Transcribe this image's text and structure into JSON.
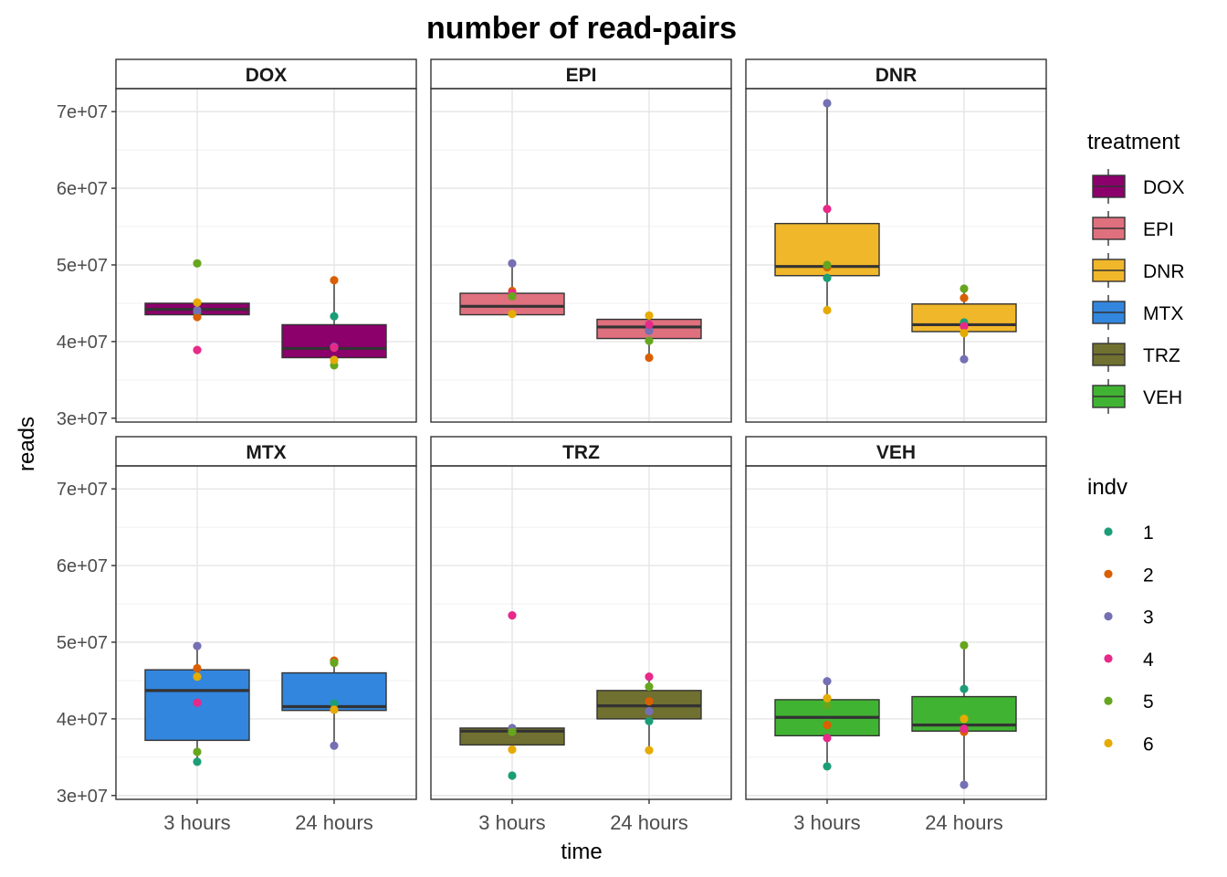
{
  "chart_data": {
    "type": "box",
    "title": "number of read-pairs",
    "xlabel": "time",
    "ylabel": "reads",
    "x_categories": [
      "3 hours",
      "24 hours"
    ],
    "y_ticks": [
      30000000,
      40000000,
      50000000,
      60000000,
      70000000
    ],
    "y_tick_labels": [
      "3e+07",
      "4e+07",
      "5e+07",
      "6e+07",
      "7e+07"
    ],
    "ylim": [
      29500000,
      73000000
    ],
    "grid": true,
    "facet_layout": "2 rows x 3 columns",
    "legend_position": "right",
    "treatment_legend": {
      "title": "treatment",
      "items": [
        {
          "label": "DOX",
          "color": "#8B006B"
        },
        {
          "label": "EPI",
          "color": "#DF707E"
        },
        {
          "label": "DNR",
          "color": "#F1B72B"
        },
        {
          "label": "MTX",
          "color": "#3386DD"
        },
        {
          "label": "TRZ",
          "color": "#707031"
        },
        {
          "label": "VEH",
          "color": "#41B333"
        }
      ]
    },
    "indv_legend": {
      "title": "indv",
      "items": [
        {
          "label": "1",
          "color": "#1B9E77"
        },
        {
          "label": "2",
          "color": "#D95F02"
        },
        {
          "label": "3",
          "color": "#7570B3"
        },
        {
          "label": "4",
          "color": "#E7298A"
        },
        {
          "label": "5",
          "color": "#66A61E"
        },
        {
          "label": "6",
          "color": "#E6AB02"
        }
      ]
    },
    "panels": [
      {
        "name": "DOX",
        "color": "#8B006B",
        "groups": [
          {
            "time": "3 hours",
            "box": {
              "q1": 43500000,
              "median": 44200000,
              "q3": 45000000
            },
            "whiskers": [
              43100000,
              45100000
            ],
            "points": [
              {
                "indv": "1",
                "value": 43800000
              },
              {
                "indv": "2",
                "value": 43200000
              },
              {
                "indv": "3",
                "value": 44100000
              },
              {
                "indv": "4",
                "value": 38900000
              },
              {
                "indv": "5",
                "value": 50200000
              },
              {
                "indv": "6",
                "value": 45100000
              }
            ]
          },
          {
            "time": "24 hours",
            "box": {
              "q1": 37900000,
              "median": 39100000,
              "q3": 42200000
            },
            "whiskers": [
              36900000,
              48000000
            ],
            "points": [
              {
                "indv": "1",
                "value": 43300000
              },
              {
                "indv": "2",
                "value": 48000000
              },
              {
                "indv": "3",
                "value": 39300000
              },
              {
                "indv": "4",
                "value": 39200000
              },
              {
                "indv": "5",
                "value": 36900000
              },
              {
                "indv": "6",
                "value": 37600000
              }
            ]
          }
        ]
      },
      {
        "name": "EPI",
        "color": "#DF707E",
        "groups": [
          {
            "time": "3 hours",
            "box": {
              "q1": 43500000,
              "median": 44600000,
              "q3": 46300000
            },
            "whiskers": [
              43500000,
              50200000
            ],
            "points": [
              {
                "indv": "1",
                "value": 46000000
              },
              {
                "indv": "2",
                "value": 46600000
              },
              {
                "indv": "3",
                "value": 50200000
              },
              {
                "indv": "4",
                "value": 46300000
              },
              {
                "indv": "5",
                "value": 45900000
              },
              {
                "indv": "6",
                "value": 43600000
              }
            ]
          },
          {
            "time": "24 hours",
            "box": {
              "q1": 40400000,
              "median": 41900000,
              "q3": 42900000
            },
            "whiskers": [
              38000000,
              43400000
            ],
            "points": [
              {
                "indv": "1",
                "value": 41500000
              },
              {
                "indv": "2",
                "value": 37900000
              },
              {
                "indv": "3",
                "value": 41400000
              },
              {
                "indv": "4",
                "value": 42200000
              },
              {
                "indv": "5",
                "value": 40100000
              },
              {
                "indv": "6",
                "value": 43400000
              }
            ]
          }
        ]
      },
      {
        "name": "DNR",
        "color": "#F1B72B",
        "groups": [
          {
            "time": "3 hours",
            "box": {
              "q1": 48600000,
              "median": 49800000,
              "q3": 55400000
            },
            "whiskers": [
              44100000,
              71100000
            ],
            "points": [
              {
                "indv": "1",
                "value": 48300000
              },
              {
                "indv": "2",
                "value": 49700000
              },
              {
                "indv": "3",
                "value": 71100000
              },
              {
                "indv": "4",
                "value": 57300000
              },
              {
                "indv": "5",
                "value": 50000000
              },
              {
                "indv": "6",
                "value": 44100000
              }
            ]
          },
          {
            "time": "24 hours",
            "box": {
              "q1": 41300000,
              "median": 42200000,
              "q3": 44900000
            },
            "whiskers": [
              37700000,
              46900000
            ],
            "points": [
              {
                "indv": "1",
                "value": 42500000
              },
              {
                "indv": "2",
                "value": 45700000
              },
              {
                "indv": "3",
                "value": 37700000
              },
              {
                "indv": "4",
                "value": 42000000
              },
              {
                "indv": "5",
                "value": 46900000
              },
              {
                "indv": "6",
                "value": 41100000
              }
            ]
          }
        ]
      },
      {
        "name": "MTX",
        "color": "#3386DD",
        "groups": [
          {
            "time": "3 hours",
            "box": {
              "q1": 37200000,
              "median": 43700000,
              "q3": 46400000
            },
            "whiskers": [
              34400000,
              49500000
            ],
            "points": [
              {
                "indv": "1",
                "value": 34400000
              },
              {
                "indv": "2",
                "value": 46600000
              },
              {
                "indv": "3",
                "value": 49500000
              },
              {
                "indv": "4",
                "value": 42100000
              },
              {
                "indv": "5",
                "value": 35700000
              },
              {
                "indv": "6",
                "value": 45500000
              }
            ]
          },
          {
            "time": "24 hours",
            "box": {
              "q1": 41100000,
              "median": 41600000,
              "q3": 46000000
            },
            "whiskers": [
              36500000,
              47600000
            ],
            "points": [
              {
                "indv": "1",
                "value": 42000000
              },
              {
                "indv": "2",
                "value": 47600000
              },
              {
                "indv": "3",
                "value": 36500000
              },
              {
                "indv": "4",
                "value": 41200000
              },
              {
                "indv": "5",
                "value": 47300000
              },
              {
                "indv": "6",
                "value": 41200000
              }
            ]
          }
        ]
      },
      {
        "name": "TRZ",
        "color": "#707031",
        "groups": [
          {
            "time": "3 hours",
            "box": {
              "q1": 36600000,
              "median": 38400000,
              "q3": 38800000
            },
            "whiskers": [
              36000000,
              38800000
            ],
            "points": [
              {
                "indv": "1",
                "value": 32600000
              },
              {
                "indv": "2",
                "value": 38600000
              },
              {
                "indv": "3",
                "value": 38800000
              },
              {
                "indv": "4",
                "value": 53500000
              },
              {
                "indv": "5",
                "value": 38300000
              },
              {
                "indv": "6",
                "value": 36000000
              }
            ]
          },
          {
            "time": "24 hours",
            "box": {
              "q1": 40000000,
              "median": 41700000,
              "q3": 43700000
            },
            "whiskers": [
              35900000,
              45500000
            ],
            "points": [
              {
                "indv": "1",
                "value": 39700000
              },
              {
                "indv": "2",
                "value": 42300000
              },
              {
                "indv": "3",
                "value": 41000000
              },
              {
                "indv": "4",
                "value": 45500000
              },
              {
                "indv": "5",
                "value": 44200000
              },
              {
                "indv": "6",
                "value": 35900000
              }
            ]
          }
        ]
      },
      {
        "name": "VEH",
        "color": "#41B333",
        "groups": [
          {
            "time": "3 hours",
            "box": {
              "q1": 37800000,
              "median": 40200000,
              "q3": 42500000
            },
            "whiskers": [
              33800000,
              44900000
            ],
            "points": [
              {
                "indv": "1",
                "value": 33800000
              },
              {
                "indv": "2",
                "value": 39200000
              },
              {
                "indv": "3",
                "value": 44900000
              },
              {
                "indv": "4",
                "value": 37500000
              },
              {
                "indv": "5",
                "value": 41800000
              },
              {
                "indv": "6",
                "value": 42700000
              }
            ]
          },
          {
            "time": "24 hours",
            "box": {
              "q1": 38400000,
              "median": 39200000,
              "q3": 42900000
            },
            "whiskers": [
              31400000,
              49600000
            ],
            "points": [
              {
                "indv": "1",
                "value": 43900000
              },
              {
                "indv": "2",
                "value": 38300000
              },
              {
                "indv": "3",
                "value": 31400000
              },
              {
                "indv": "4",
                "value": 38700000
              },
              {
                "indv": "5",
                "value": 49600000
              },
              {
                "indv": "6",
                "value": 40000000
              }
            ]
          }
        ]
      }
    ]
  }
}
